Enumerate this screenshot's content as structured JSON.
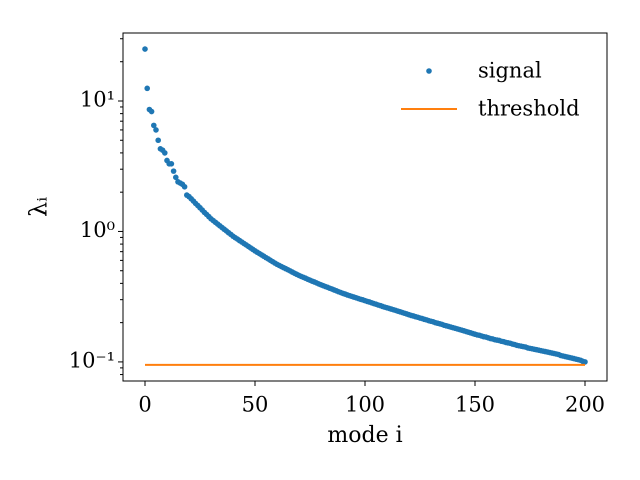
{
  "chart_data": {
    "type": "scatter",
    "xlabel": "mode i",
    "ylabel": "λᵢ",
    "yscale": "log",
    "legend": "upper right",
    "xlim": [
      -10,
      210
    ],
    "xticks": [
      0,
      50,
      100,
      150,
      200
    ],
    "ylim": [
      0.0714,
      33.2
    ],
    "yticks": [
      {
        "value": 0.1,
        "label": "10⁻¹"
      },
      {
        "value": 1,
        "label": "10⁰"
      },
      {
        "value": 10,
        "label": "10¹"
      }
    ],
    "yminorticks": [
      0.08,
      0.09,
      0.2,
      0.3,
      0.4,
      0.5,
      0.6,
      0.7,
      0.8,
      0.9,
      2,
      3,
      4,
      5,
      6,
      7,
      8,
      9,
      20,
      30
    ],
    "series": [
      {
        "name": "signal",
        "mode": "markers",
        "color": "#1f77b4",
        "x": [
          0,
          1,
          2,
          3,
          4,
          5,
          6,
          7,
          8,
          9,
          10,
          11,
          12,
          13,
          14,
          15,
          16,
          17,
          18,
          19,
          20,
          21,
          22,
          23,
          24,
          25,
          26,
          27,
          28,
          29,
          30,
          31,
          32,
          33,
          34,
          35,
          36,
          37,
          38,
          39,
          40,
          41,
          42,
          43,
          44,
          45,
          46,
          47,
          48,
          49,
          50,
          51,
          52,
          53,
          54,
          55,
          56,
          57,
          58,
          59,
          60,
          61,
          62,
          63,
          64,
          65,
          66,
          67,
          68,
          69,
          70,
          71,
          72,
          73,
          74,
          75,
          76,
          77,
          78,
          79,
          80,
          81,
          82,
          83,
          84,
          85,
          86,
          87,
          88,
          89,
          90,
          91,
          92,
          93,
          94,
          95,
          96,
          97,
          98,
          99,
          100,
          101,
          102,
          103,
          104,
          105,
          106,
          107,
          108,
          109,
          110,
          111,
          112,
          113,
          114,
          115,
          116,
          117,
          118,
          119,
          120,
          121,
          122,
          123,
          124,
          125,
          126,
          127,
          128,
          129,
          130,
          131,
          132,
          133,
          134,
          135,
          136,
          137,
          138,
          139,
          140,
          141,
          142,
          143,
          144,
          145,
          146,
          147,
          148,
          149,
          150,
          151,
          152,
          153,
          154,
          155,
          156,
          157,
          158,
          159,
          160,
          161,
          162,
          163,
          164,
          165,
          166,
          167,
          168,
          169,
          170,
          171,
          172,
          173,
          174,
          175,
          176,
          177,
          178,
          179,
          180,
          181,
          182,
          183,
          184,
          185,
          186,
          187,
          188,
          189,
          190,
          191,
          192,
          193,
          194,
          195,
          196,
          197,
          198,
          199,
          200
        ],
        "values": [
          25,
          12.5,
          8.6,
          8.3,
          6.5,
          6.0,
          5.0,
          4.3,
          4.2,
          4.0,
          3.5,
          3.3,
          3.3,
          2.9,
          2.6,
          2.4,
          2.35,
          2.3,
          2.2,
          1.9,
          1.85,
          1.78,
          1.71,
          1.64,
          1.58,
          1.52,
          1.46,
          1.4,
          1.35,
          1.3,
          1.25,
          1.212,
          1.176,
          1.14,
          1.106,
          1.072,
          1.04,
          1.009,
          0.978,
          0.949,
          0.92,
          0.896,
          0.874,
          0.851,
          0.83,
          0.808,
          0.788,
          0.768,
          0.748,
          0.729,
          0.71,
          0.693,
          0.677,
          0.661,
          0.646,
          0.63,
          0.616,
          0.601,
          0.587,
          0.573,
          0.56,
          0.549,
          0.538,
          0.528,
          0.518,
          0.508,
          0.498,
          0.488,
          0.478,
          0.469,
          0.46,
          0.452,
          0.445,
          0.438,
          0.43,
          0.423,
          0.416,
          0.41,
          0.403,
          0.396,
          0.39,
          0.384,
          0.378,
          0.373,
          0.367,
          0.362,
          0.356,
          0.351,
          0.345,
          0.34,
          0.335,
          0.331,
          0.326,
          0.322,
          0.318,
          0.314,
          0.31,
          0.306,
          0.302,
          0.299,
          0.295,
          0.291,
          0.288,
          0.284,
          0.28,
          0.277,
          0.273,
          0.27,
          0.266,
          0.263,
          0.26,
          0.257,
          0.254,
          0.251,
          0.248,
          0.245,
          0.242,
          0.239,
          0.236,
          0.233,
          0.23,
          0.227,
          0.225,
          0.222,
          0.22,
          0.217,
          0.215,
          0.212,
          0.21,
          0.207,
          0.205,
          0.203,
          0.2,
          0.198,
          0.196,
          0.194,
          0.191,
          0.189,
          0.187,
          0.185,
          0.183,
          0.181,
          0.179,
          0.177,
          0.175,
          0.173,
          0.171,
          0.169,
          0.167,
          0.165,
          0.163,
          0.161,
          0.16,
          0.158,
          0.156,
          0.155,
          0.153,
          0.151,
          0.15,
          0.148,
          0.147,
          0.146,
          0.144,
          0.143,
          0.141,
          0.14,
          0.139,
          0.137,
          0.136,
          0.134,
          0.133,
          0.132,
          0.131,
          0.13,
          0.128,
          0.127,
          0.126,
          0.125,
          0.124,
          0.123,
          0.122,
          0.121,
          0.12,
          0.119,
          0.118,
          0.117,
          0.116,
          0.115,
          0.114,
          0.112,
          0.111,
          0.11,
          0.109,
          0.108,
          0.107,
          0.106,
          0.105,
          0.104,
          0.103,
          0.101,
          0.1
        ]
      },
      {
        "name": "threshold",
        "mode": "line",
        "color": "#ff7f0e",
        "x": [
          0,
          200
        ],
        "values": [
          0.095,
          0.095
        ]
      }
    ]
  }
}
